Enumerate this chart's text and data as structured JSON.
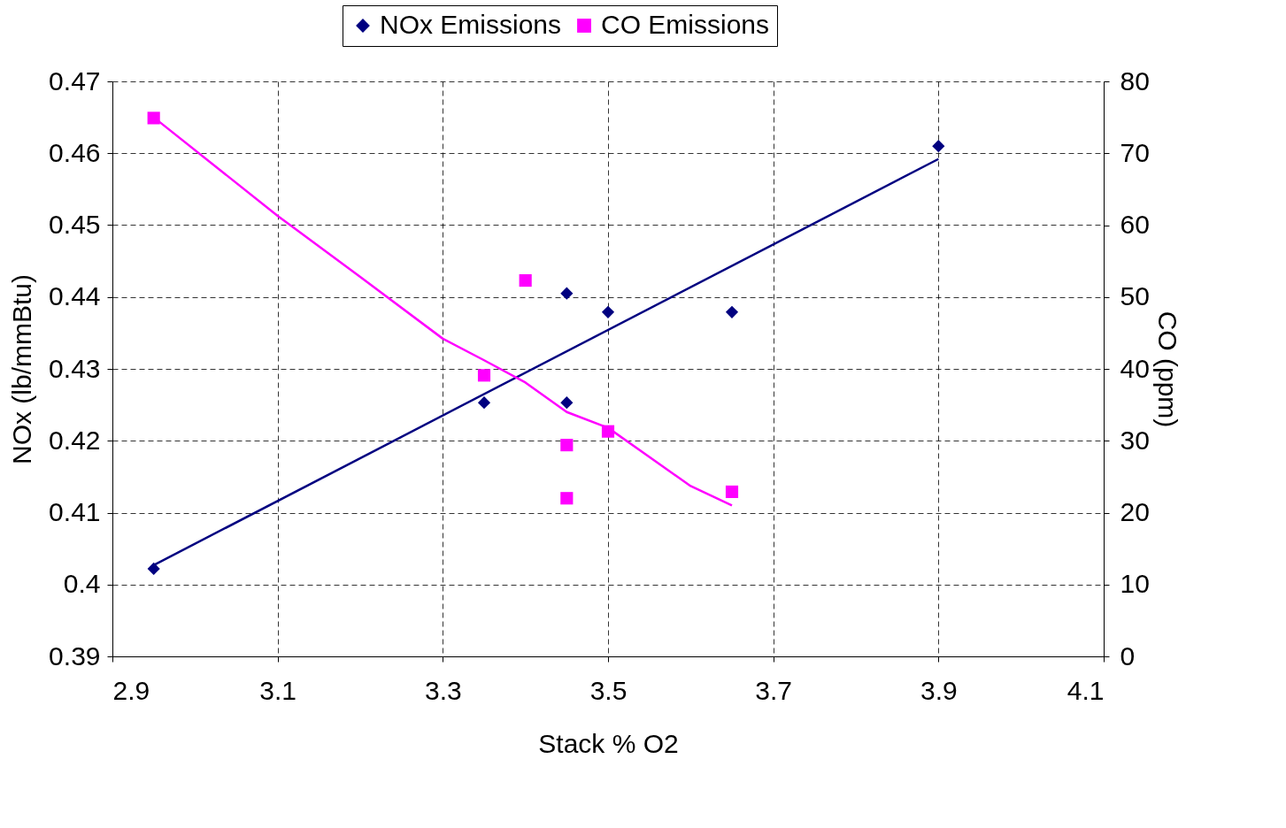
{
  "chart_data": {
    "type": "scatter",
    "xlabel": "Stack % O2",
    "ylabel": "NOx (lb/mmBtu)",
    "y2label": "CO (ppm)",
    "xlim": [
      2.9,
      4.1
    ],
    "xticks": [
      2.9,
      3.1,
      3.3,
      3.5,
      3.7,
      3.9,
      4.1
    ],
    "ylim": [
      0.39,
      0.47
    ],
    "yticks": [
      0.39,
      0.4,
      0.41,
      0.42,
      0.43,
      0.44,
      0.45,
      0.46,
      0.47
    ],
    "y2lim": [
      0,
      80
    ],
    "y2ticks": [
      0,
      10,
      20,
      30,
      40,
      50,
      60,
      70,
      80
    ],
    "grid": true,
    "legend": "top",
    "series": [
      {
        "name": "NOx Emissions",
        "marker": "diamond",
        "color": "#000080",
        "x": [
          2.95,
          3.35,
          3.45,
          3.45,
          3.5,
          3.65,
          3.9
        ],
        "values": [
          0.4022,
          0.4253,
          0.4405,
          0.4253,
          0.4379,
          0.4379,
          0.461
        ]
      },
      {
        "name": "CO Emissions",
        "marker": "square",
        "color": "#ff00ff",
        "axis": "y2",
        "x": [
          2.95,
          3.35,
          3.4,
          3.45,
          3.45,
          3.5,
          3.65
        ],
        "values": [
          74.9,
          39.1,
          52.3,
          29.4,
          22.0,
          31.3,
          22.9
        ]
      },
      {
        "type": "line",
        "marker": "none",
        "color": "#000080",
        "x": [
          2.95,
          3.9
        ],
        "values": [
          0.4027,
          0.4592
        ]
      },
      {
        "type": "line",
        "marker": "none",
        "color": "#ff00ff",
        "axis": "y2",
        "x": [
          2.95,
          3.1,
          3.2,
          3.3,
          3.35,
          3.4,
          3.45,
          3.5,
          3.6,
          3.65
        ],
        "values": [
          75.0,
          61.3,
          52.8,
          44.2,
          41.2,
          38.1,
          34.0,
          31.8,
          23.7,
          21.0
        ]
      }
    ]
  }
}
